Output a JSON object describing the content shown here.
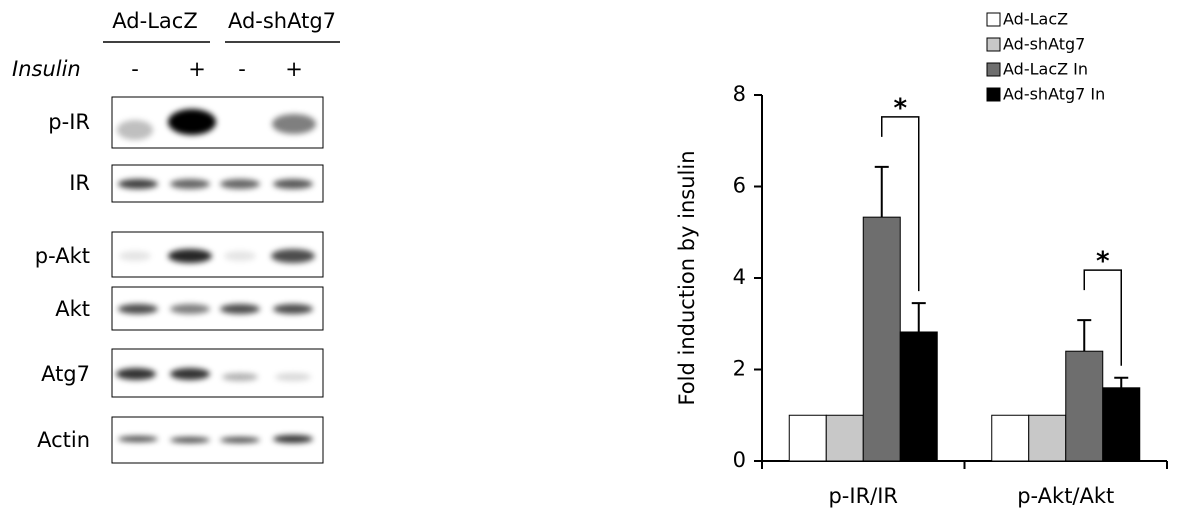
{
  "blot": {
    "groups": [
      "Ad-LacZ",
      "Ad-shAtg7"
    ],
    "treatment": "Insulin",
    "lanes": [
      "-",
      "+",
      "-",
      "+"
    ],
    "rows": [
      "p-IR",
      "IR",
      "p-Akt",
      "Akt",
      "Atg7",
      "Actin"
    ]
  },
  "chart_data": {
    "type": "bar",
    "y_label": "Fold induction by insulin",
    "categories": [
      "p-IR/IR",
      "p-Akt/Akt"
    ],
    "series": [
      {
        "name": "Ad-LacZ",
        "color": "#ffffff",
        "values": [
          1,
          1
        ]
      },
      {
        "name": "Ad-shAtg7",
        "color": "#c8c8c8",
        "values": [
          1,
          1
        ]
      },
      {
        "name": "Ad-LacZ In",
        "color": "#6e6e6e",
        "values": [
          5.33,
          2.4
        ],
        "errors": [
          1.1,
          0.68
        ]
      },
      {
        "name": "Ad-shAtg7 In",
        "color": "#000000",
        "values": [
          2.82,
          1.6
        ],
        "errors": [
          0.63,
          0.22
        ]
      }
    ],
    "annotations": [
      "*",
      "*"
    ],
    "ylim": [
      0,
      8
    ],
    "yticks": [
      0,
      2,
      4,
      6,
      8
    ],
    "legend": "upper right"
  }
}
